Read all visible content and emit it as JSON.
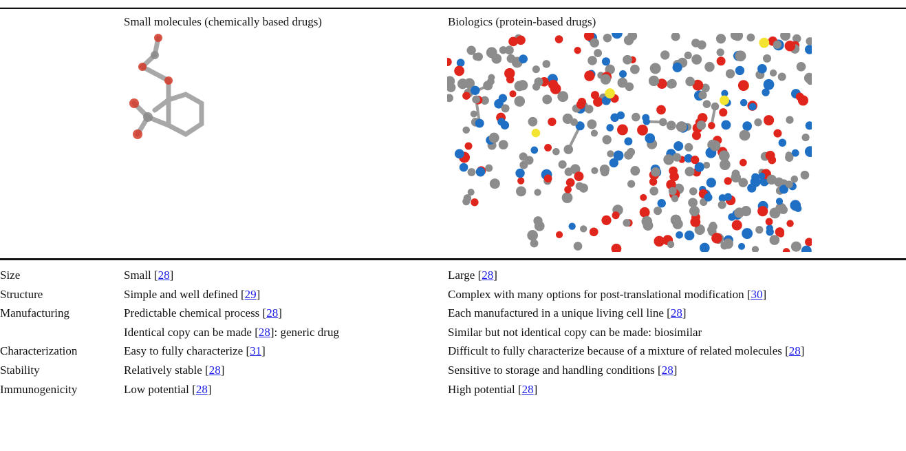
{
  "table": {
    "header": [
      "Small molecules (chemically based drugs)",
      "Biologics (protein-based drugs)"
    ],
    "rows": [
      {
        "label": "Size",
        "small": [
          {
            "t": "Small ["
          },
          {
            "ref": "28"
          },
          {
            "t": "]"
          }
        ],
        "bio": [
          {
            "t": "Large ["
          },
          {
            "ref": "28"
          },
          {
            "t": "]"
          }
        ]
      },
      {
        "label": "Structure",
        "small": [
          {
            "t": "Simple and well defined ["
          },
          {
            "ref": "29"
          },
          {
            "t": "]"
          }
        ],
        "bio": [
          {
            "t": "Complex with many options for post-translational modification ["
          },
          {
            "ref": "30"
          },
          {
            "t": "]"
          }
        ]
      },
      {
        "label": "Manufacturing",
        "small": [
          {
            "t": "Predictable chemical process ["
          },
          {
            "ref": "28"
          },
          {
            "t": "]"
          }
        ],
        "bio": [
          {
            "t": "Each manufactured in a unique living cell line ["
          },
          {
            "ref": "28"
          },
          {
            "t": "]"
          }
        ]
      },
      {
        "small": [
          {
            "t": "Identical copy can be made ["
          },
          {
            "ref": "28"
          },
          {
            "t": "]: generic drug"
          }
        ],
        "bio": [
          {
            "t": "Similar but not identical copy can be made: biosimilar"
          }
        ]
      },
      {
        "label": "Characterization",
        "small": [
          {
            "t": "Easy to fully characterize ["
          },
          {
            "ref": "31"
          },
          {
            "t": "]"
          }
        ],
        "bio": [
          {
            "t": "Difficult to fully characterize because of a mixture of related molecules ["
          },
          {
            "ref": "28"
          },
          {
            "t": "]"
          }
        ]
      },
      {
        "label": "Stability",
        "small": [
          {
            "t": "Relatively stable ["
          },
          {
            "ref": "28"
          },
          {
            "t": "]"
          }
        ],
        "bio": [
          {
            "t": "Sensitive to storage and handling conditions ["
          },
          {
            "ref": "28"
          },
          {
            "t": "]"
          }
        ]
      },
      {
        "label": "Immunogenicity",
        "small": [
          {
            "t": "Low potential ["
          },
          {
            "ref": "28"
          },
          {
            "t": "]"
          }
        ],
        "bio": [
          {
            "t": "High potential ["
          },
          {
            "ref": "28"
          },
          {
            "t": "]"
          }
        ]
      }
    ]
  }
}
